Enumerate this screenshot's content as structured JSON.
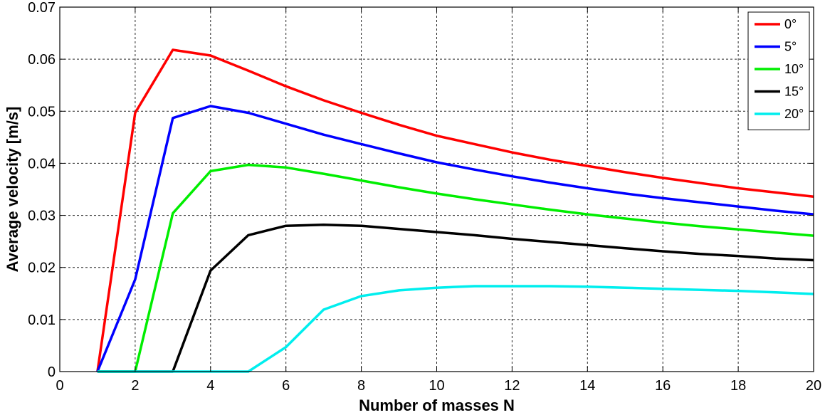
{
  "chart_data": {
    "type": "line",
    "title": "",
    "xlabel": "Number of masses N",
    "ylabel": "Average velocity [m/s]",
    "xlim": [
      0,
      20
    ],
    "ylim": [
      0,
      0.07
    ],
    "xticks": [
      0,
      2,
      4,
      6,
      8,
      10,
      12,
      14,
      16,
      18,
      20
    ],
    "yticks": [
      0,
      0.01,
      0.02,
      0.03,
      0.04,
      0.05,
      0.06,
      0.07
    ],
    "xtick_labels": [
      "0",
      "2",
      "4",
      "6",
      "8",
      "10",
      "12",
      "14",
      "16",
      "18",
      "20"
    ],
    "ytick_labels": [
      "0",
      "0.01",
      "0.02",
      "0.03",
      "0.04",
      "0.05",
      "0.06",
      "0.07"
    ],
    "grid": true,
    "legend_position": "top-right",
    "x": [
      1,
      2,
      3,
      4,
      5,
      6,
      7,
      8,
      9,
      10,
      11,
      12,
      13,
      14,
      15,
      16,
      17,
      18,
      19,
      20
    ],
    "series": [
      {
        "name": "0°",
        "color": "#ff0000",
        "values": [
          0,
          0.0497,
          0.0618,
          0.0607,
          0.0578,
          0.0548,
          0.0521,
          0.0497,
          0.0474,
          0.0453,
          0.0437,
          0.0421,
          0.0407,
          0.0395,
          0.0383,
          0.0372,
          0.0362,
          0.0352,
          0.0344,
          0.0336
        ]
      },
      {
        "name": "5°",
        "color": "#0000ff",
        "values": [
          0,
          0.0177,
          0.0487,
          0.051,
          0.0497,
          0.0476,
          0.0455,
          0.0437,
          0.0419,
          0.0402,
          0.0388,
          0.0375,
          0.0363,
          0.0352,
          0.0342,
          0.0333,
          0.0325,
          0.0317,
          0.0309,
          0.0302
        ]
      },
      {
        "name": "10°",
        "color": "#00ee00",
        "values": [
          0,
          0,
          0.0304,
          0.0385,
          0.0397,
          0.0392,
          0.038,
          0.0367,
          0.0354,
          0.0342,
          0.0331,
          0.0321,
          0.0311,
          0.0302,
          0.0294,
          0.0286,
          0.0279,
          0.0273,
          0.0267,
          0.0261
        ]
      },
      {
        "name": "15°",
        "color": "#000000",
        "values": [
          0,
          0,
          0,
          0.0194,
          0.0262,
          0.028,
          0.0282,
          0.028,
          0.0274,
          0.0268,
          0.0262,
          0.0255,
          0.0249,
          0.0243,
          0.0237,
          0.0231,
          0.0226,
          0.0222,
          0.0217,
          0.0214
        ]
      },
      {
        "name": "20°",
        "color": "#00eeee",
        "values": [
          0,
          0,
          0,
          0,
          0,
          0.0047,
          0.0119,
          0.0145,
          0.0156,
          0.0161,
          0.0164,
          0.0164,
          0.0164,
          0.0163,
          0.0161,
          0.0159,
          0.0157,
          0.0155,
          0.0152,
          0.0149
        ]
      }
    ]
  }
}
